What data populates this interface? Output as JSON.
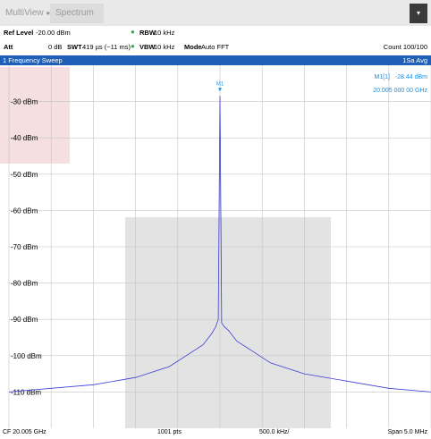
{
  "tabs": {
    "multiview": "MultiView",
    "spectrum": "Spectrum"
  },
  "header": {
    "ref_level_label": "Ref Level",
    "ref_level_value": "-20.00 dBm",
    "att_label": "Att",
    "att_value": "0 dB",
    "swt_label": "SWT",
    "swt_value": "419 µs (~11 ms)",
    "rbw_label": "RBW",
    "rbw_value": "10 kHz",
    "vbw_label": "VBW",
    "vbw_value": "10 kHz",
    "mode_label": "Mode",
    "mode_value": "Auto FFT",
    "count": "Count 100/100"
  },
  "sweep": {
    "title": "1 Frequency Sweep",
    "trace": "1Sa Avg"
  },
  "marker": {
    "name": "M1[1]",
    "level": "-28.44 dBm",
    "freq": "20.005 000 00 GHz",
    "flag": "M1"
  },
  "footer": {
    "cf": "CF 20.005 GHz",
    "pts": "1001 pts",
    "div": "500.0 kHz/",
    "span": "Span 5.0 MHz"
  },
  "colors": {
    "trace": "#3c3cd6",
    "title_bar": "#1f5fb7",
    "marker": "#2196e8"
  },
  "chart_data": {
    "type": "line",
    "xlabel": "",
    "ylabel": "",
    "xlim": [
      20.0025,
      20.0075
    ],
    "ylim": [
      -120,
      -20
    ],
    "y_ticks": [
      -30,
      -40,
      -50,
      -60,
      -70,
      -80,
      -90,
      -100,
      -110
    ],
    "y_tick_labels": [
      "-30 dBm",
      "-40 dBm",
      "-50 dBm",
      "-60 dBm",
      "-70 dBm",
      "-80 dBm",
      "-90 dBm",
      "-100 dBm",
      "-110 dBm"
    ],
    "series": [
      {
        "x": [
          20.0025,
          20.003,
          20.0035,
          20.004,
          20.0044,
          20.0046,
          20.0048,
          20.0049,
          20.00495,
          20.00498,
          20.005,
          20.00502,
          20.00505,
          20.0051,
          20.0052,
          20.0054,
          20.0056,
          20.006,
          20.0065,
          20.007,
          20.0075
        ],
        "y": [
          -110,
          -109,
          -108,
          -106,
          -103,
          -100,
          -97,
          -94,
          -92,
          -90,
          -28.44,
          -91,
          -92,
          -93,
          -96,
          -99,
          -102,
          -105,
          -107,
          -109,
          -110
        ]
      }
    ]
  }
}
